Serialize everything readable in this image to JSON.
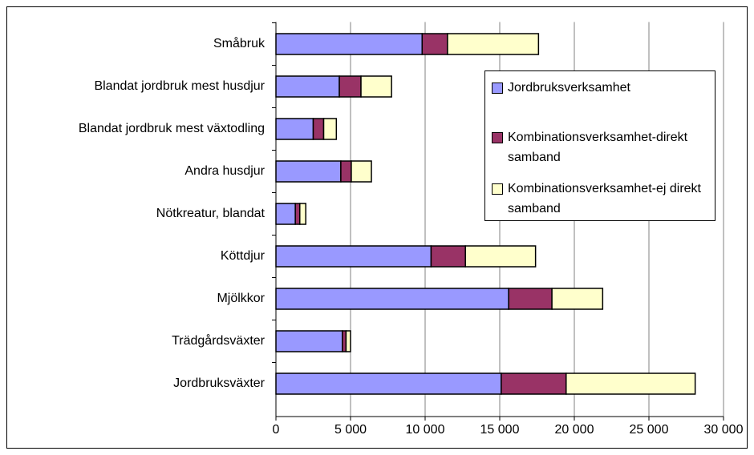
{
  "chart_data": {
    "type": "stacked_bar_horizontal",
    "categories": [
      "Småbruk",
      "Blandat jordbruk mest husdjur",
      "Blandat jordbruk mest växtodling",
      "Andra husdjur",
      "Nötkreatur, blandat",
      "Köttdjur",
      "Mjölkkor",
      "Trädgårdsväxter",
      "Jordbruksväxter"
    ],
    "series": [
      {
        "name": "Jordbruksverksamhet",
        "color": "#9999ff",
        "values": [
          9800,
          4250,
          2500,
          4350,
          1300,
          10400,
          15600,
          4450,
          15100
        ]
      },
      {
        "name": "Kombinationsverksamhet-direkt samband",
        "color": "#993366",
        "values": [
          1700,
          1450,
          700,
          700,
          300,
          2300,
          2900,
          250,
          4350
        ]
      },
      {
        "name": "Kombinationsverksamhet-ej direkt samband",
        "color": "#ffffcc",
        "values": [
          6100,
          2050,
          850,
          1350,
          400,
          4700,
          3400,
          300,
          8650
        ]
      }
    ],
    "xlim": [
      0,
      30000
    ],
    "xticks": [
      0,
      {
        "value": 5000,
        "label": "5 000"
      },
      {
        "value": 10000,
        "label": "10 000"
      },
      {
        "value": 15000,
        "label": "15 000"
      },
      {
        "value": 20000,
        "label": "20 000"
      },
      {
        "value": 25000,
        "label": "25 000"
      },
      {
        "value": 30000,
        "label": "30 000"
      }
    ],
    "grid": true,
    "legend": "right"
  }
}
